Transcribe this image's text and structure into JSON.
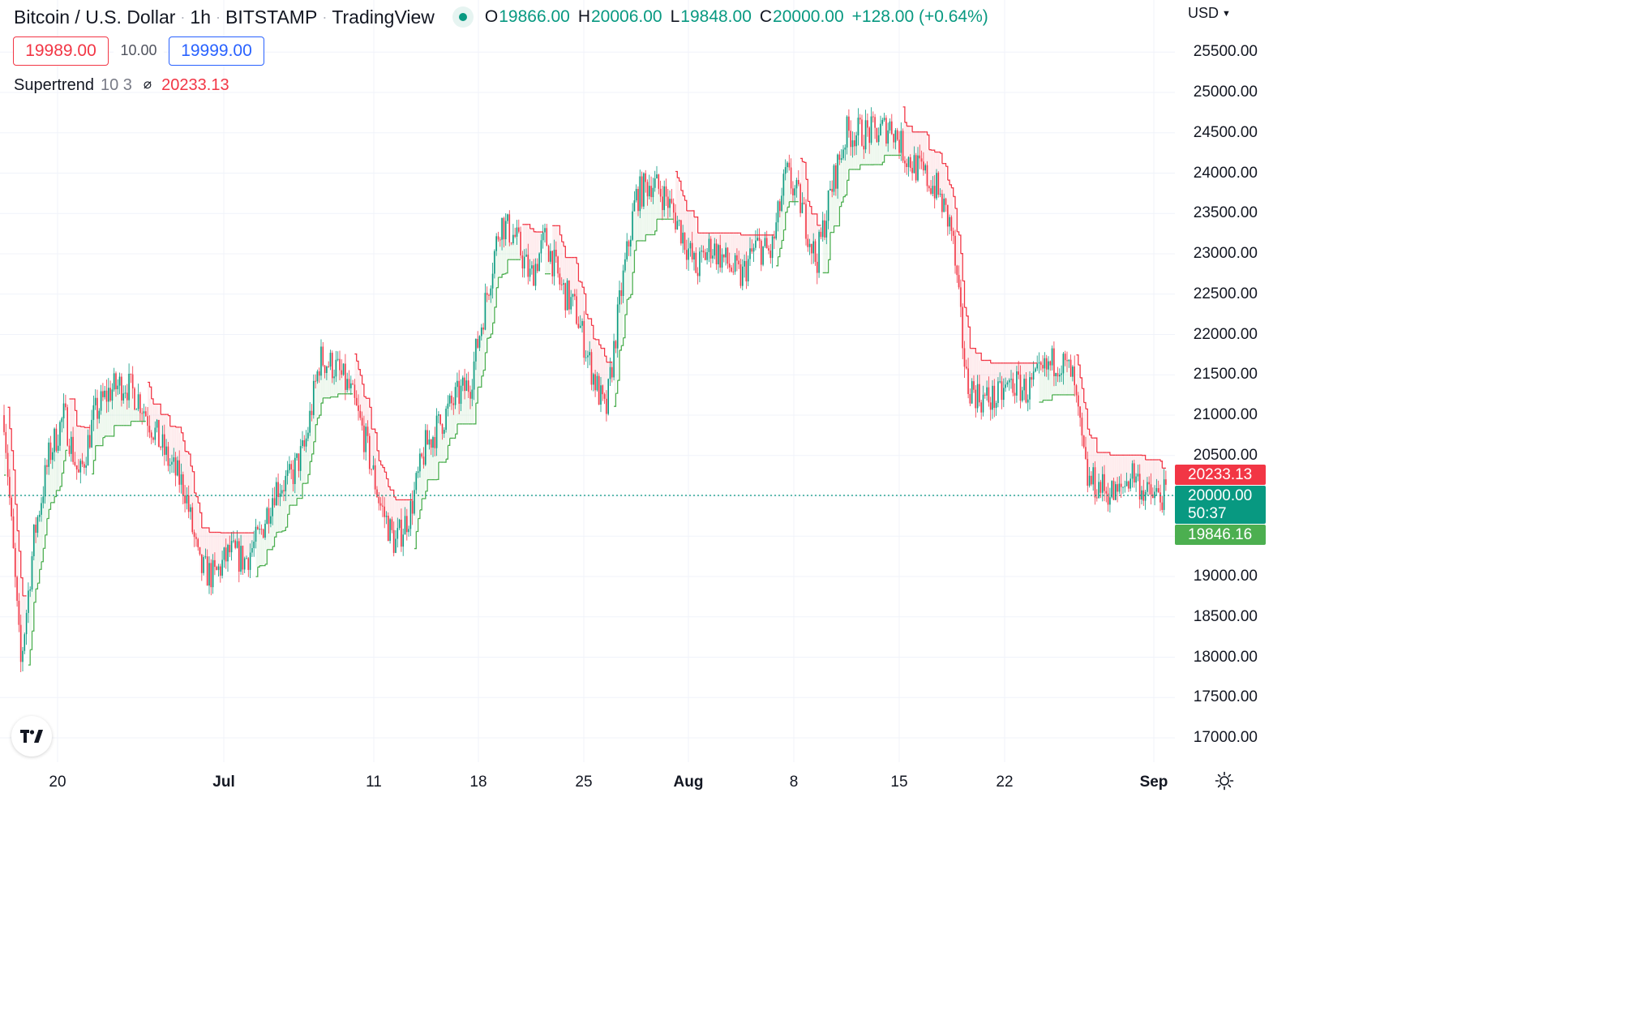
{
  "header": {
    "symbol": "Bitcoin / U.S. Dollar",
    "interval": "1h",
    "exchange": "BITSTAMP",
    "source": "TradingView",
    "ohlc": {
      "o_label": "O",
      "o": "19866.00",
      "h_label": "H",
      "h": "20006.00",
      "l_label": "L",
      "l": "19848.00",
      "c_label": "C",
      "c": "20000.00",
      "change": "+128.00 (+0.64%)"
    },
    "bid": "19989.00",
    "spread": "10.00",
    "ask": "19999.00",
    "currency": "USD"
  },
  "indicator": {
    "name": "Supertrend",
    "params": "10 3",
    "icon": "hidden-eye-icon",
    "value": "20233.13"
  },
  "tags": {
    "supertrend_up": "20233.13",
    "last_price": "20000.00",
    "countdown": "50:37",
    "supertrend_down": "19846.16"
  },
  "colors": {
    "up": "#089981",
    "down": "#f23645",
    "supertrend_down": "#f23645",
    "supertrend_up": "#4caf50",
    "bid": "#f23645",
    "ask": "#2962ff"
  },
  "chart_data": {
    "type": "candlestick",
    "price_axis": [
      "25500.00",
      "25000.00",
      "24500.00",
      "24000.00",
      "23500.00",
      "23000.00",
      "22500.00",
      "22000.00",
      "21500.00",
      "21000.00",
      "20500.00",
      "19000.00",
      "18500.00",
      "18000.00",
      "17500.00",
      "17000.00"
    ],
    "time_axis": [
      {
        "label": "20",
        "bold": false
      },
      {
        "label": "Jul",
        "bold": true
      },
      {
        "label": "11",
        "bold": false
      },
      {
        "label": "18",
        "bold": false
      },
      {
        "label": "25",
        "bold": false
      },
      {
        "label": "Aug",
        "bold": true
      },
      {
        "label": "8",
        "bold": false
      },
      {
        "label": "15",
        "bold": false
      },
      {
        "label": "22",
        "bold": false
      },
      {
        "label": "Sep",
        "bold": true
      }
    ],
    "close_path": [
      [
        "2022-06-17",
        21000
      ],
      [
        "2022-06-18",
        18200
      ],
      [
        "2022-06-18",
        17700
      ],
      [
        "2022-06-19",
        19500
      ],
      [
        "2022-06-20",
        20500
      ],
      [
        "2022-06-21",
        21000
      ],
      [
        "2022-06-22",
        20200
      ],
      [
        "2022-06-23",
        21000
      ],
      [
        "2022-06-24",
        21300
      ],
      [
        "2022-06-25",
        21400
      ],
      [
        "2022-06-26",
        21200
      ],
      [
        "2022-06-27",
        20800
      ],
      [
        "2022-06-28",
        20400
      ],
      [
        "2022-06-29",
        20100
      ],
      [
        "2022-06-30",
        19100
      ],
      [
        "2022-07-01",
        19000
      ],
      [
        "2022-07-02",
        19300
      ],
      [
        "2022-07-03",
        19200
      ],
      [
        "2022-07-04",
        19500
      ],
      [
        "2022-07-05",
        20100
      ],
      [
        "2022-07-06",
        20200
      ],
      [
        "2022-07-07",
        20600
      ],
      [
        "2022-07-08",
        21700
      ],
      [
        "2022-07-09",
        21600
      ],
      [
        "2022-07-10",
        21300
      ],
      [
        "2022-07-11",
        20700
      ],
      [
        "2022-07-12",
        19900
      ],
      [
        "2022-07-13",
        19400
      ],
      [
        "2022-07-14",
        19800
      ],
      [
        "2022-07-15",
        20600
      ],
      [
        "2022-07-16",
        20900
      ],
      [
        "2022-07-17",
        21200
      ],
      [
        "2022-07-18",
        21400
      ],
      [
        "2022-07-19",
        22400
      ],
      [
        "2022-07-20",
        23400
      ],
      [
        "2022-07-21",
        23200
      ],
      [
        "2022-07-22",
        22700
      ],
      [
        "2022-07-23",
        23200
      ],
      [
        "2022-07-24",
        22600
      ],
      [
        "2022-07-25",
        22300
      ],
      [
        "2022-07-26",
        21600
      ],
      [
        "2022-07-27",
        21000
      ],
      [
        "2022-07-28",
        22500
      ],
      [
        "2022-07-29",
        23700
      ],
      [
        "2022-07-30",
        23900
      ],
      [
        "2022-07-31",
        23700
      ],
      [
        "2022-08-01",
        23300
      ],
      [
        "2022-08-02",
        22800
      ],
      [
        "2022-08-03",
        23100
      ],
      [
        "2022-08-04",
        22900
      ],
      [
        "2022-08-05",
        22700
      ],
      [
        "2022-08-06",
        23100
      ],
      [
        "2022-08-07",
        23000
      ],
      [
        "2022-08-08",
        24000
      ],
      [
        "2022-08-09",
        23600
      ],
      [
        "2022-08-10",
        22900
      ],
      [
        "2022-08-11",
        23800
      ],
      [
        "2022-08-12",
        24500
      ],
      [
        "2022-08-13",
        24500
      ],
      [
        "2022-08-14",
        24500
      ],
      [
        "2022-08-15",
        24600
      ],
      [
        "2022-08-16",
        24200
      ],
      [
        "2022-08-17",
        24000
      ],
      [
        "2022-08-18",
        23800
      ],
      [
        "2022-08-19",
        23300
      ],
      [
        "2022-08-20",
        21400
      ],
      [
        "2022-08-21",
        21200
      ],
      [
        "2022-08-22",
        21200
      ],
      [
        "2022-08-23",
        21400
      ],
      [
        "2022-08-24",
        21300
      ],
      [
        "2022-08-25",
        21500
      ],
      [
        "2022-08-26",
        21700
      ],
      [
        "2022-08-27",
        21500
      ],
      [
        "2022-08-28",
        20200
      ],
      [
        "2022-08-29",
        20100
      ],
      [
        "2022-08-30",
        20000
      ],
      [
        "2022-08-31",
        20300
      ],
      [
        "2022-09-01",
        20000
      ]
    ]
  }
}
